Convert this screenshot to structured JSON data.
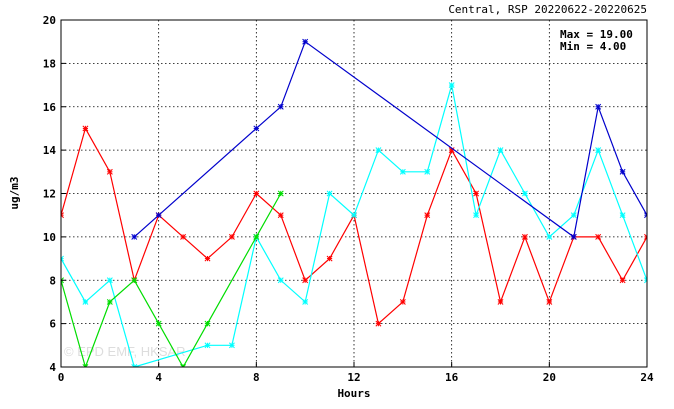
{
  "chart_data": {
    "type": "line",
    "title": "Central, RSP 20220622-20220625",
    "xlabel": "Hours",
    "ylabel": "ug/m3",
    "xlim": [
      0,
      24
    ],
    "ylim": [
      4,
      20
    ],
    "xticks": [
      0,
      4,
      8,
      12,
      16,
      20,
      24
    ],
    "yticks": [
      4,
      6,
      8,
      10,
      12,
      14,
      16,
      18,
      20
    ],
    "grid": true,
    "stats": {
      "max_label": "Max = 19.00",
      "min_label": "Min =  4.00"
    },
    "watermark": "© EPD EMF, HKSAR",
    "series": [
      {
        "color": "#ff0000",
        "x": [
          0,
          1,
          2,
          3,
          4,
          5,
          6,
          7,
          8,
          9,
          10,
          11,
          12,
          13,
          14,
          15,
          16,
          17,
          18,
          19,
          20,
          21,
          22,
          23,
          24
        ],
        "y": [
          11,
          15,
          13,
          8,
          11,
          10,
          9,
          10,
          12,
          11,
          8,
          9,
          11,
          6,
          7,
          11,
          14,
          12,
          7,
          10,
          7,
          10,
          10,
          8,
          10
        ]
      },
      {
        "color": "#00ffff",
        "x": [
          0,
          1,
          2,
          3,
          6,
          7,
          8,
          9,
          10,
          11,
          12,
          13,
          14,
          15,
          16,
          17,
          18,
          19,
          20,
          21,
          22,
          23,
          24
        ],
        "y": [
          9,
          7,
          8,
          4,
          5,
          5,
          10,
          8,
          7,
          12,
          11,
          14,
          13,
          13,
          17,
          11,
          14,
          12,
          10,
          11,
          14,
          11,
          8
        ]
      },
      {
        "color": "#00dd00",
        "x": [
          0,
          1,
          2,
          3,
          4,
          5,
          6,
          8,
          9
        ],
        "y": [
          8,
          4,
          7,
          8,
          6,
          4,
          6,
          10,
          12
        ]
      },
      {
        "color": "#0000cc",
        "x": [
          3,
          4,
          8,
          9,
          10,
          21,
          22,
          23,
          24
        ],
        "y": [
          10,
          11,
          15,
          16,
          19,
          10,
          16,
          13,
          11
        ]
      }
    ]
  }
}
